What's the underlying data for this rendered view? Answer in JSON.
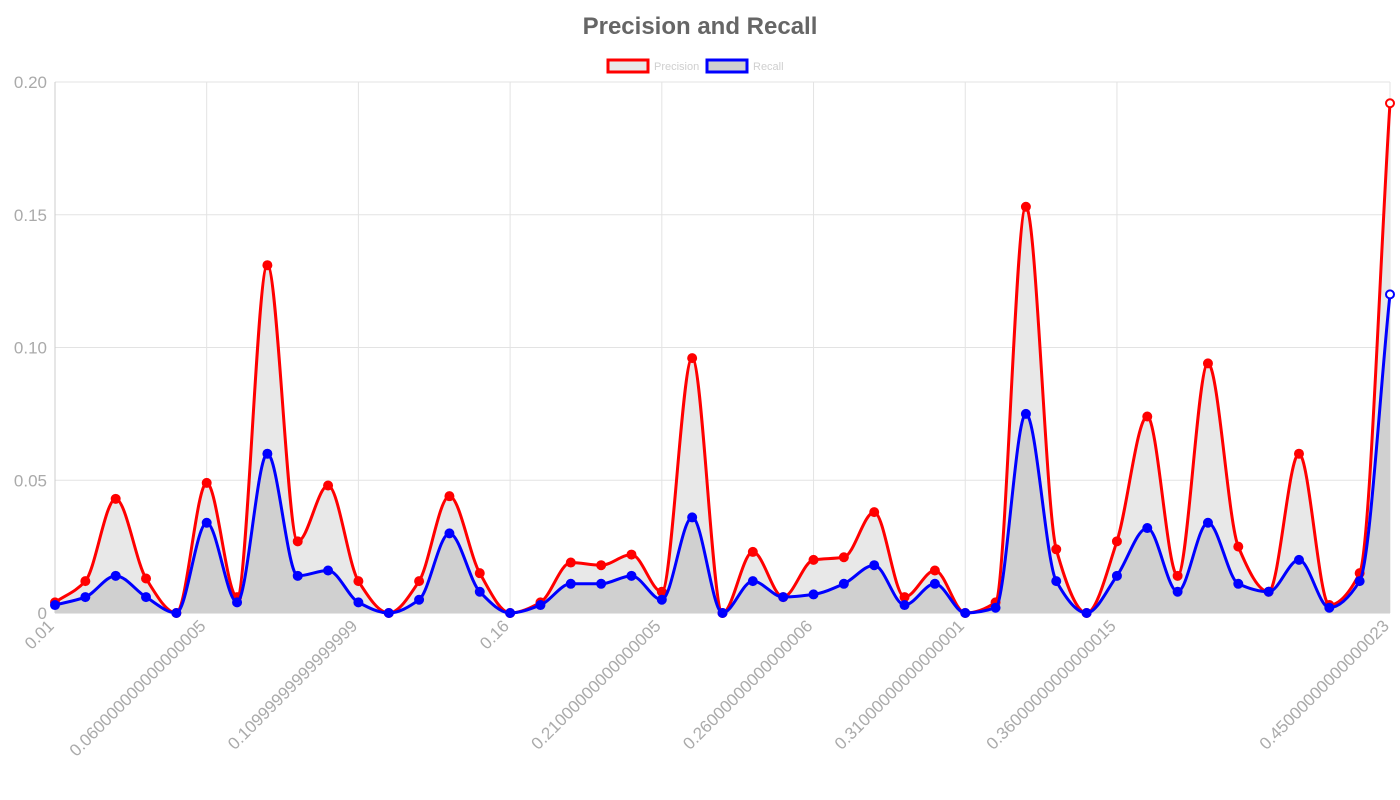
{
  "chart_data": {
    "type": "line",
    "title": "Precision and Recall",
    "xlabel": "",
    "ylabel": "",
    "ylim": [
      0,
      0.2
    ],
    "y_ticks": [
      "0",
      "0.05",
      "0.10",
      "0.15",
      "0.20"
    ],
    "x_ticks": [
      "0.01",
      "0.060000000000000005",
      "0.10999999999999999",
      "0.16",
      "0.21000000000000005",
      "0.26000000000000006",
      "0.31000000000000001",
      "0.36000000000000015",
      "0.45000000000000023"
    ],
    "x_tick_indices": [
      0,
      5,
      10,
      15,
      20,
      25,
      30,
      35,
      44
    ],
    "point_count": 45,
    "grid": true,
    "legend_position": "top",
    "series": [
      {
        "name": "Precision",
        "color": "#ff0000",
        "fill": "#e8e8e8",
        "values": [
          0.004,
          0.012,
          0.043,
          0.013,
          0.0,
          0.049,
          0.006,
          0.131,
          0.027,
          0.048,
          0.012,
          0.0,
          0.012,
          0.044,
          0.015,
          0.0,
          0.004,
          0.019,
          0.018,
          0.022,
          0.008,
          0.096,
          0.0,
          0.023,
          0.006,
          0.02,
          0.021,
          0.038,
          0.006,
          0.016,
          0.0,
          0.004,
          0.153,
          0.024,
          0.0,
          0.027,
          0.074,
          0.014,
          0.094,
          0.025,
          0.008,
          0.06,
          0.003,
          0.015,
          0.192
        ]
      },
      {
        "name": "Recall",
        "color": "#0000ff",
        "fill": "#d0d0d0",
        "values": [
          0.003,
          0.006,
          0.014,
          0.006,
          0.0,
          0.034,
          0.004,
          0.06,
          0.014,
          0.016,
          0.004,
          0.0,
          0.005,
          0.03,
          0.008,
          0.0,
          0.003,
          0.011,
          0.011,
          0.014,
          0.005,
          0.036,
          0.0,
          0.012,
          0.006,
          0.007,
          0.011,
          0.018,
          0.003,
          0.011,
          0.0,
          0.002,
          0.075,
          0.012,
          0.0,
          0.014,
          0.032,
          0.008,
          0.034,
          0.011,
          0.008,
          0.02,
          0.002,
          0.012,
          0.12
        ]
      }
    ]
  }
}
